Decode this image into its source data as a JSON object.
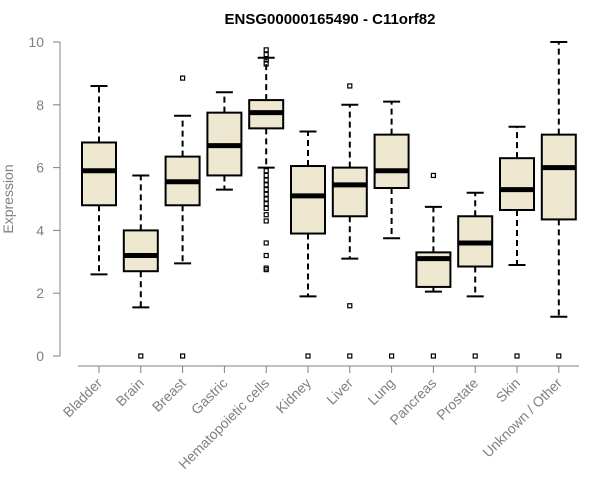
{
  "chart_data": {
    "type": "boxplot",
    "title": "ENSG00000165490 - C11orf82",
    "ylabel": "Expression",
    "ylim": [
      0,
      10
    ],
    "yticks": [
      0,
      2,
      4,
      6,
      8,
      10
    ],
    "box_fill": "#EEE8D0",
    "categories": [
      "Bladder",
      "Brain",
      "Breast",
      "Gastric",
      "Hematopoietic cells",
      "Kidney",
      "Liver",
      "Lung",
      "Pancreas",
      "Prostate",
      "Skin",
      "Unknown / Other"
    ],
    "boxes": [
      {
        "category": "Bladder",
        "whisker_low": 2.6,
        "q1": 4.8,
        "median": 5.9,
        "q3": 6.8,
        "whisker_high": 8.6,
        "outliers": []
      },
      {
        "category": "Brain",
        "whisker_low": 1.55,
        "q1": 2.7,
        "median": 3.2,
        "q3": 4.0,
        "whisker_high": 5.75,
        "outliers": [
          0
        ]
      },
      {
        "category": "Breast",
        "whisker_low": 2.95,
        "q1": 4.8,
        "median": 5.55,
        "q3": 6.35,
        "whisker_high": 7.65,
        "outliers": [
          0,
          8.85
        ]
      },
      {
        "category": "Gastric",
        "whisker_low": 5.3,
        "q1": 5.75,
        "median": 6.7,
        "q3": 7.75,
        "whisker_high": 8.4,
        "outliers": []
      },
      {
        "category": "Hematopoietic cells",
        "whisker_low": 6.0,
        "q1": 7.25,
        "median": 7.75,
        "q3": 8.15,
        "whisker_high": 9.5,
        "outliers": [
          9.75,
          9.6,
          9.45,
          9.3,
          5.9,
          5.75,
          5.6,
          5.45,
          5.3,
          5.15,
          5.0,
          4.85,
          4.7,
          4.5,
          4.3,
          3.6,
          3.2,
          2.8,
          2.75
        ]
      },
      {
        "category": "Kidney",
        "whisker_low": 1.9,
        "q1": 3.9,
        "median": 5.1,
        "q3": 6.05,
        "whisker_high": 7.15,
        "outliers": [
          0
        ]
      },
      {
        "category": "Liver",
        "whisker_low": 3.1,
        "q1": 4.45,
        "median": 5.45,
        "q3": 6.0,
        "whisker_high": 8.0,
        "outliers": [
          0,
          1.6,
          8.6
        ]
      },
      {
        "category": "Lung",
        "whisker_low": 3.75,
        "q1": 5.35,
        "median": 5.9,
        "q3": 7.05,
        "whisker_high": 8.1,
        "outliers": [
          0
        ]
      },
      {
        "category": "Pancreas",
        "whisker_low": 2.05,
        "q1": 2.2,
        "median": 3.1,
        "q3": 3.3,
        "whisker_high": 4.75,
        "outliers": [
          0,
          5.75
        ]
      },
      {
        "category": "Prostate",
        "whisker_low": 1.9,
        "q1": 2.85,
        "median": 3.6,
        "q3": 4.45,
        "whisker_high": 5.2,
        "outliers": [
          0
        ]
      },
      {
        "category": "Skin",
        "whisker_low": 2.9,
        "q1": 4.65,
        "median": 5.3,
        "q3": 6.3,
        "whisker_high": 7.3,
        "outliers": [
          0
        ]
      },
      {
        "category": "Unknown / Other",
        "whisker_low": 1.25,
        "q1": 4.35,
        "median": 6.0,
        "q3": 7.05,
        "whisker_high": 10.0,
        "outliers": [
          0
        ]
      }
    ]
  }
}
